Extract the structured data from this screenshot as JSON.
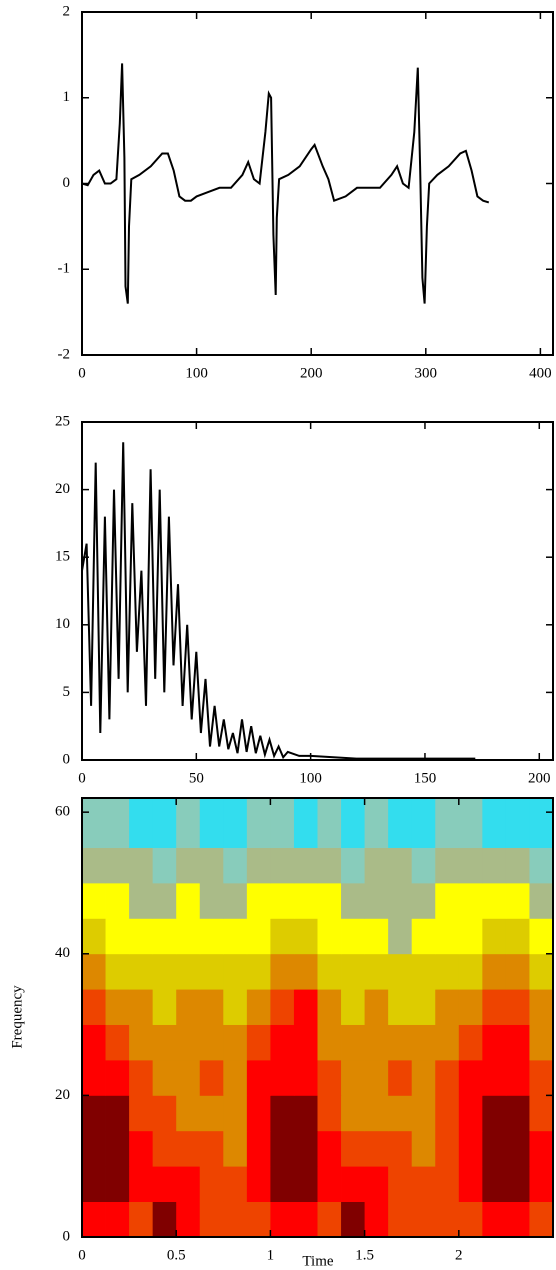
{
  "chart_data": [
    {
      "type": "line",
      "color": "#000000",
      "x": [
        0,
        5,
        10,
        15,
        20,
        25,
        30,
        33,
        35,
        37,
        38,
        40,
        41,
        43,
        50,
        60,
        70,
        75,
        80,
        85,
        90,
        95,
        100,
        110,
        120,
        130,
        140,
        145,
        150,
        155,
        160,
        163,
        165,
        167,
        169,
        170,
        172,
        180,
        190,
        200,
        203,
        210,
        215,
        220,
        230,
        240,
        250,
        260,
        270,
        275,
        280,
        285,
        290,
        293,
        295,
        297,
        299,
        301,
        303,
        310,
        320,
        330,
        335,
        340,
        345,
        350,
        355
      ],
      "values": [
        0,
        -0.02,
        0.1,
        0.15,
        0,
        0,
        0.05,
        0.7,
        1.4,
        0.3,
        -1.2,
        -1.4,
        -0.5,
        0.05,
        0.1,
        0.2,
        0.35,
        0.35,
        0.15,
        -0.15,
        -0.2,
        -0.2,
        -0.15,
        -0.1,
        -0.05,
        -0.05,
        0.1,
        0.25,
        0.05,
        0,
        0.6,
        1.05,
        1,
        -0.6,
        -1.3,
        -0.4,
        0.05,
        0.1,
        0.2,
        0.4,
        0.45,
        0.2,
        0.05,
        -0.2,
        -0.15,
        -0.05,
        -0.05,
        -0.05,
        0.1,
        0.2,
        0,
        -0.05,
        0.6,
        1.35,
        0.2,
        -1.1,
        -1.4,
        -0.5,
        0,
        0.1,
        0.2,
        0.35,
        0.38,
        0.15,
        -0.15,
        -0.2,
        -0.22
      ],
      "xlim": [
        0,
        411
      ],
      "ylim": [
        -2,
        2
      ],
      "xticks": [
        0,
        100,
        200,
        300,
        400
      ],
      "yticks": [
        -2,
        -1,
        0,
        1,
        2
      ]
    },
    {
      "type": "line",
      "color": "#000000",
      "x": [
        0,
        2,
        4,
        6,
        8,
        10,
        12,
        14,
        16,
        18,
        20,
        22,
        24,
        26,
        28,
        30,
        32,
        34,
        36,
        38,
        40,
        42,
        44,
        46,
        48,
        50,
        52,
        54,
        56,
        58,
        60,
        62,
        64,
        66,
        68,
        70,
        72,
        74,
        76,
        78,
        80,
        82,
        84,
        86,
        88,
        90,
        95,
        100,
        110,
        120,
        140,
        160,
        172
      ],
      "values": [
        14,
        16,
        4,
        22,
        2,
        18,
        3,
        20,
        6,
        23.5,
        5,
        19,
        8,
        14,
        4,
        21.5,
        6,
        20,
        5,
        18,
        7,
        13,
        4,
        10,
        3,
        8,
        2,
        6,
        1,
        4,
        1,
        3,
        0.8,
        2,
        0.5,
        3,
        0.6,
        2.5,
        0.5,
        1.8,
        0.4,
        1.5,
        0.3,
        1,
        0.2,
        0.6,
        0.3,
        0.3,
        0.2,
        0.1,
        0.1,
        0.1,
        0.1
      ],
      "xlim": [
        0,
        206
      ],
      "ylim": [
        0,
        25
      ],
      "xticks": [
        0,
        50,
        100,
        150,
        200
      ],
      "yticks": [
        0,
        5,
        10,
        15,
        20,
        25
      ]
    },
    {
      "type": "heatmap",
      "xlabel": "Time",
      "ylabel": "Frequency",
      "x": [
        0,
        0.125,
        0.25,
        0.375,
        0.5,
        0.625,
        0.75,
        0.875,
        1,
        1.125,
        1.25,
        1.375,
        1.5,
        1.625,
        1.75,
        1.875,
        2,
        2.125,
        2.25,
        2.375,
        2.5
      ],
      "y": [
        0,
        5,
        10,
        15,
        20,
        25,
        30,
        35,
        40,
        45,
        50,
        55,
        62
      ],
      "levels": [
        "#33ddee",
        "#88ccbb",
        "#aabb88",
        "#ffff00",
        "#ddcc00",
        "#dd8800",
        "#ee4400",
        "#ff0000",
        "#800000"
      ],
      "z": [
        [
          7,
          7,
          6,
          8,
          7,
          6,
          6,
          6,
          7,
          7,
          6,
          8,
          7,
          6,
          6,
          6,
          6,
          7,
          7,
          6
        ],
        [
          8,
          8,
          7,
          7,
          7,
          6,
          6,
          7,
          8,
          8,
          7,
          7,
          7,
          6,
          6,
          6,
          7,
          8,
          8,
          7
        ],
        [
          8,
          8,
          7,
          6,
          6,
          6,
          5,
          7,
          8,
          8,
          7,
          6,
          6,
          6,
          5,
          6,
          7,
          8,
          8,
          7
        ],
        [
          8,
          8,
          6,
          6,
          5,
          5,
          5,
          7,
          8,
          8,
          6,
          5,
          5,
          5,
          5,
          6,
          7,
          8,
          8,
          6
        ],
        [
          7,
          7,
          6,
          5,
          5,
          6,
          5,
          7,
          7,
          7,
          6,
          5,
          5,
          6,
          5,
          6,
          7,
          7,
          7,
          6
        ],
        [
          7,
          6,
          5,
          5,
          5,
          5,
          5,
          6,
          7,
          7,
          5,
          5,
          5,
          5,
          5,
          5,
          6,
          7,
          7,
          5
        ],
        [
          6,
          5,
          5,
          4,
          5,
          5,
          4,
          5,
          6,
          7,
          5,
          4,
          5,
          4,
          4,
          5,
          5,
          6,
          6,
          5
        ],
        [
          5,
          4,
          4,
          4,
          4,
          4,
          4,
          4,
          5,
          5,
          4,
          4,
          4,
          4,
          4,
          4,
          4,
          5,
          5,
          4
        ],
        [
          4,
          3,
          3,
          3,
          3,
          3,
          3,
          3,
          4,
          4,
          3,
          3,
          3,
          2,
          3,
          3,
          3,
          4,
          4,
          3
        ],
        [
          3,
          3,
          2,
          2,
          3,
          2,
          2,
          3,
          3,
          3,
          3,
          2,
          2,
          2,
          2,
          3,
          3,
          3,
          3,
          2
        ],
        [
          2,
          2,
          2,
          1,
          2,
          2,
          1,
          2,
          2,
          2,
          2,
          1,
          2,
          2,
          1,
          2,
          2,
          2,
          2,
          1
        ],
        [
          1,
          1,
          0,
          0,
          1,
          0,
          0,
          1,
          1,
          0,
          1,
          0,
          1,
          0,
          0,
          1,
          1,
          0,
          0,
          0
        ]
      ],
      "xlim": [
        0,
        2.5
      ],
      "ylim": [
        0,
        62
      ],
      "xticks": [
        0,
        0.5,
        1,
        1.5,
        2
      ],
      "yticks": [
        0,
        20,
        40,
        60
      ]
    }
  ]
}
